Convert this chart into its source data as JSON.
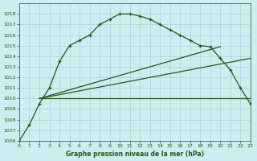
{
  "title": "Graphe pression niveau de la mer (hPa)",
  "bg": "#cceef0",
  "grid_color": "#a8d4d6",
  "lc": "#1a5c1a",
  "xlim": [
    0,
    23
  ],
  "ylim": [
    1006,
    1019
  ],
  "yticks": [
    1006,
    1007,
    1008,
    1009,
    1010,
    1011,
    1012,
    1013,
    1014,
    1015,
    1016,
    1017,
    1018
  ],
  "xticks": [
    0,
    1,
    2,
    3,
    4,
    5,
    6,
    7,
    8,
    9,
    10,
    11,
    12,
    13,
    14,
    15,
    16,
    17,
    18,
    19,
    20,
    21,
    22,
    23
  ],
  "curve_main_x": [
    0,
    1,
    2,
    3,
    4,
    5,
    6,
    7,
    8,
    9,
    10,
    11,
    12,
    13,
    14,
    15,
    16,
    17,
    18,
    19,
    20,
    21,
    22,
    23
  ],
  "curve_main_y": [
    1006,
    1007.5,
    1009.5,
    1011,
    1013.5,
    1015,
    1015.5,
    1016,
    1017,
    1017.5,
    1018,
    1018,
    1017.8,
    1017.5,
    1017,
    1016.5,
    1016,
    1015.5,
    1015,
    1014.9,
    1013.8,
    1012.7,
    1011,
    1009.5
  ],
  "line1_x": [
    2,
    23
  ],
  "line1_y": [
    1010.0,
    1010.0
  ],
  "line2_x": [
    2,
    20
  ],
  "line2_y": [
    1010.0,
    1014.9
  ],
  "line3_x": [
    2,
    23
  ],
  "line3_y": [
    1010.0,
    1013.8
  ]
}
